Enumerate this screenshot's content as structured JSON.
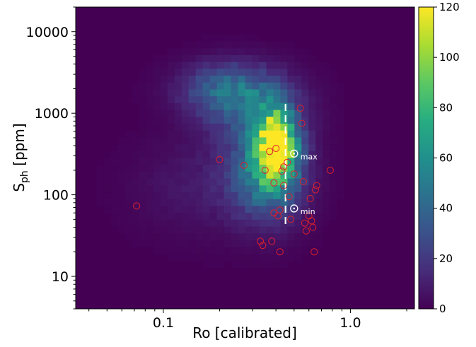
{
  "chart_data": {
    "type": "heatmap",
    "title": "",
    "xlabel": "Ro [calibrated]",
    "ylabel_main": "S",
    "ylabel_sub": "ph",
    "ylabel_unit": " [ppm]",
    "xscale": "log",
    "yscale": "log",
    "xlim": [
      0.034,
      2.2
    ],
    "ylim": [
      4,
      20000
    ],
    "xticks": [
      {
        "value": 0.1,
        "label": "0.1"
      },
      {
        "value": 1.0,
        "label": "1.0"
      }
    ],
    "yticks": [
      {
        "value": 10,
        "label": "10"
      },
      {
        "value": 100,
        "label": "100"
      },
      {
        "value": 1000,
        "label": "1000"
      },
      {
        "value": 10000,
        "label": "10000"
      }
    ],
    "colorbar": {
      "colormap": "viridis",
      "range": [
        0,
        120
      ],
      "ticks": [
        0,
        20,
        40,
        60,
        80,
        100,
        120
      ]
    },
    "density_model": {
      "blobs": [
        {
          "x": 0.4,
          "y": 400,
          "sx": 0.075,
          "sy": 0.3,
          "amp": 115
        },
        {
          "x": 0.36,
          "y": 180,
          "sx": 0.13,
          "sy": 0.38,
          "amp": 50
        },
        {
          "x": 0.22,
          "y": 2000,
          "sx": 0.17,
          "sy": 0.22,
          "amp": 34
        },
        {
          "x": 0.3,
          "y": 1100,
          "sx": 0.18,
          "sy": 0.3,
          "amp": 28
        },
        {
          "x": 0.17,
          "y": 130,
          "sx": 0.25,
          "sy": 0.4,
          "amp": 9
        }
      ]
    },
    "points": [
      {
        "ro": 0.072,
        "s": 73
      },
      {
        "ro": 0.2,
        "s": 270
      },
      {
        "ro": 0.27,
        "s": 230
      },
      {
        "ro": 0.33,
        "s": 27
      },
      {
        "ro": 0.34,
        "s": 24
      },
      {
        "ro": 0.35,
        "s": 200
      },
      {
        "ro": 0.37,
        "s": 340
      },
      {
        "ro": 0.38,
        "s": 27
      },
      {
        "ro": 0.39,
        "s": 140
      },
      {
        "ro": 0.39,
        "s": 60
      },
      {
        "ro": 0.4,
        "s": 370
      },
      {
        "ro": 0.41,
        "s": 55
      },
      {
        "ro": 0.42,
        "s": 20
      },
      {
        "ro": 0.42,
        "s": 65
      },
      {
        "ro": 0.43,
        "s": 195
      },
      {
        "ro": 0.44,
        "s": 220
      },
      {
        "ro": 0.44,
        "s": 130
      },
      {
        "ro": 0.46,
        "s": 250
      },
      {
        "ro": 0.47,
        "s": 95
      },
      {
        "ro": 0.48,
        "s": 50
      },
      {
        "ro": 0.5,
        "s": 180
      },
      {
        "ro": 0.54,
        "s": 1150
      },
      {
        "ro": 0.55,
        "s": 750
      },
      {
        "ro": 0.56,
        "s": 145
      },
      {
        "ro": 0.57,
        "s": 45
      },
      {
        "ro": 0.58,
        "s": 36
      },
      {
        "ro": 0.6,
        "s": 55
      },
      {
        "ro": 0.61,
        "s": 90
      },
      {
        "ro": 0.62,
        "s": 48
      },
      {
        "ro": 0.63,
        "s": 40
      },
      {
        "ro": 0.64,
        "s": 20
      },
      {
        "ro": 0.65,
        "s": 115
      },
      {
        "ro": 0.66,
        "s": 130
      },
      {
        "ro": 0.78,
        "s": 200
      }
    ],
    "marker_color": "#e0202a",
    "vline": {
      "x": 0.45,
      "y_range": [
        40,
        1300
      ],
      "color": "#ffffff"
    },
    "annotations": [
      {
        "label": "max",
        "ro": 0.5,
        "s": 320
      },
      {
        "label": "min",
        "ro": 0.5,
        "s": 68
      }
    ]
  }
}
